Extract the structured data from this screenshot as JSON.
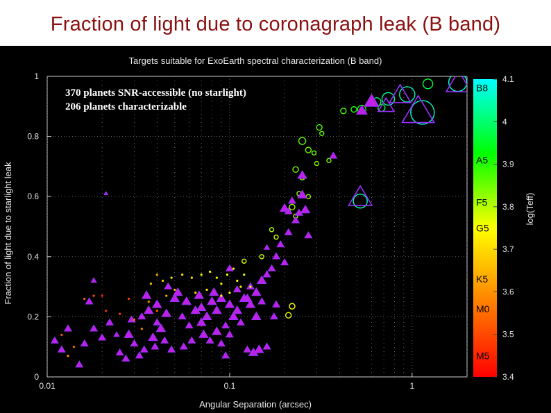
{
  "slide": {
    "title": "Fraction of light due to coronagraph leak (B band)"
  },
  "chart_data": {
    "type": "scatter",
    "title": "Targets suitable for ExoEarth spectral characterization (B band)",
    "xlabel": "Angular Separation (arcsec)",
    "ylabel": "Fraction of light due to starlight leak",
    "xscale": "log",
    "xlim": [
      0.01,
      2
    ],
    "ylim": [
      0,
      1
    ],
    "x_ticks": [
      "0.01",
      "0.1",
      "1"
    ],
    "y_ticks": [
      "0",
      "0.2",
      "0.4",
      "0.6",
      "0.8",
      "1"
    ],
    "grid": true,
    "annotations": [
      "370  planets SNR-accessible (no starlight)",
      "206 planets characterizable"
    ],
    "colorbar": {
      "label": "log(Teff)",
      "ticks": [
        "3.4",
        "3.5",
        "3.6",
        "3.7",
        "3.8",
        "3.9",
        "4",
        "4.1"
      ],
      "range": [
        3.4,
        4.1
      ],
      "spectral_types": [
        {
          "label": "B8",
          "value": 4.08
        },
        {
          "label": "A5",
          "value": 3.91
        },
        {
          "label": "F5",
          "value": 3.81
        },
        {
          "label": "G5",
          "value": 3.75
        },
        {
          "label": "K5",
          "value": 3.63
        },
        {
          "label": "M0",
          "value": 3.56
        },
        {
          "label": "M5",
          "value": 3.45
        }
      ],
      "colors": [
        "#ff0000",
        "#ff8000",
        "#ffff00",
        "#00ff00",
        "#00ffff"
      ]
    },
    "series": [
      {
        "marker": "circle",
        "points": [
          {
            "x": 1.22,
            "y": 0.975,
            "s": 7,
            "c": 3.97
          },
          {
            "x": 1.78,
            "y": 0.98,
            "s": 13,
            "c": 4.08
          },
          {
            "x": 0.94,
            "y": 0.94,
            "s": 11,
            "c": 4.05
          },
          {
            "x": 0.74,
            "y": 0.925,
            "s": 9,
            "c": 4.03
          },
          {
            "x": 0.64,
            "y": 0.915,
            "s": 6,
            "c": 3.99
          },
          {
            "x": 0.68,
            "y": 0.895,
            "s": 5,
            "c": 3.96
          },
          {
            "x": 1.14,
            "y": 0.88,
            "s": 17,
            "c": 4.07
          },
          {
            "x": 0.53,
            "y": 0.89,
            "s": 6,
            "c": 3.92
          },
          {
            "x": 0.52,
            "y": 0.585,
            "s": 10,
            "c": 4.06
          },
          {
            "x": 0.48,
            "y": 0.89,
            "s": 4,
            "c": 3.9
          },
          {
            "x": 0.42,
            "y": 0.885,
            "s": 4,
            "c": 3.88
          },
          {
            "x": 0.31,
            "y": 0.83,
            "s": 4,
            "c": 3.87
          },
          {
            "x": 0.32,
            "y": 0.81,
            "s": 3,
            "c": 3.86
          },
          {
            "x": 0.25,
            "y": 0.785,
            "s": 5,
            "c": 3.86
          },
          {
            "x": 0.27,
            "y": 0.755,
            "s": 4,
            "c": 3.85
          },
          {
            "x": 0.29,
            "y": 0.745,
            "s": 3,
            "c": 3.85
          },
          {
            "x": 0.3,
            "y": 0.71,
            "s": 3,
            "c": 3.84
          },
          {
            "x": 0.23,
            "y": 0.69,
            "s": 4,
            "c": 3.84
          },
          {
            "x": 0.25,
            "y": 0.665,
            "s": 4,
            "c": 3.83
          },
          {
            "x": 0.24,
            "y": 0.61,
            "s": 3,
            "c": 3.83
          },
          {
            "x": 0.27,
            "y": 0.6,
            "s": 3,
            "c": 3.82
          },
          {
            "x": 0.22,
            "y": 0.565,
            "s": 4,
            "c": 3.82
          },
          {
            "x": 0.2,
            "y": 0.56,
            "s": 3,
            "c": 3.81
          },
          {
            "x": 0.21,
            "y": 0.55,
            "s": 3,
            "c": 3.81
          },
          {
            "x": 0.23,
            "y": 0.535,
            "s": 3,
            "c": 3.81
          },
          {
            "x": 0.17,
            "y": 0.49,
            "s": 3,
            "c": 3.8
          },
          {
            "x": 0.15,
            "y": 0.4,
            "s": 3,
            "c": 3.78
          },
          {
            "x": 0.22,
            "y": 0.235,
            "s": 4,
            "c": 3.75
          },
          {
            "x": 0.21,
            "y": 0.205,
            "s": 4,
            "c": 3.76
          },
          {
            "x": 0.12,
            "y": 0.385,
            "s": 3,
            "c": 3.78
          },
          {
            "x": 0.18,
            "y": 0.465,
            "s": 3,
            "c": 3.79
          },
          {
            "x": 0.35,
            "y": 0.72,
            "s": 3,
            "c": 3.84
          }
        ]
      },
      {
        "marker": "triangle",
        "points": [
          {
            "x": 1.8,
            "y": 0.975,
            "s": 14
          },
          {
            "x": 0.6,
            "y": 0.915,
            "s": 8
          },
          {
            "x": 0.86,
            "y": 0.935,
            "s": 12
          },
          {
            "x": 0.72,
            "y": 0.9,
            "s": 9
          },
          {
            "x": 1.08,
            "y": 0.88,
            "s": 18
          },
          {
            "x": 0.52,
            "y": 0.595,
            "s": 13
          },
          {
            "x": 0.53,
            "y": 0.885,
            "s": 6
          },
          {
            "x": 0.37,
            "y": 0.735,
            "s": 4
          },
          {
            "x": 0.25,
            "y": 0.67,
            "s": 5
          },
          {
            "x": 0.24,
            "y": 0.545,
            "s": 4
          },
          {
            "x": 0.21,
            "y": 0.55,
            "s": 4
          },
          {
            "x": 0.23,
            "y": 0.52,
            "s": 4
          },
          {
            "x": 0.26,
            "y": 0.555,
            "s": 5
          },
          {
            "x": 0.2,
            "y": 0.56,
            "s": 5
          },
          {
            "x": 0.22,
            "y": 0.585,
            "s": 4
          },
          {
            "x": 0.25,
            "y": 0.605,
            "s": 5
          },
          {
            "x": 0.27,
            "y": 0.47,
            "s": 4
          },
          {
            "x": 0.21,
            "y": 0.48,
            "s": 4
          },
          {
            "x": 0.19,
            "y": 0.44,
            "s": 4
          },
          {
            "x": 0.2,
            "y": 0.38,
            "s": 4
          },
          {
            "x": 0.18,
            "y": 0.4,
            "s": 4
          },
          {
            "x": 0.16,
            "y": 0.34,
            "s": 4
          },
          {
            "x": 0.17,
            "y": 0.36,
            "s": 4
          },
          {
            "x": 0.15,
            "y": 0.32,
            "s": 5
          },
          {
            "x": 0.14,
            "y": 0.28,
            "s": 5
          },
          {
            "x": 0.15,
            "y": 0.25,
            "s": 4
          },
          {
            "x": 0.13,
            "y": 0.3,
            "s": 4
          },
          {
            "x": 0.12,
            "y": 0.26,
            "s": 5
          },
          {
            "x": 0.11,
            "y": 0.22,
            "s": 5
          },
          {
            "x": 0.1,
            "y": 0.24,
            "s": 5
          },
          {
            "x": 0.09,
            "y": 0.26,
            "s": 5
          },
          {
            "x": 0.085,
            "y": 0.22,
            "s": 5
          },
          {
            "x": 0.08,
            "y": 0.25,
            "s": 5
          },
          {
            "x": 0.075,
            "y": 0.2,
            "s": 5
          },
          {
            "x": 0.07,
            "y": 0.18,
            "s": 5
          },
          {
            "x": 0.065,
            "y": 0.22,
            "s": 5
          },
          {
            "x": 0.06,
            "y": 0.17,
            "s": 4
          },
          {
            "x": 0.055,
            "y": 0.2,
            "s": 4
          },
          {
            "x": 0.05,
            "y": 0.26,
            "s": 5
          },
          {
            "x": 0.045,
            "y": 0.21,
            "s": 5
          },
          {
            "x": 0.042,
            "y": 0.16,
            "s": 5
          },
          {
            "x": 0.04,
            "y": 0.24,
            "s": 5
          },
          {
            "x": 0.038,
            "y": 0.13,
            "s": 5
          },
          {
            "x": 0.036,
            "y": 0.22,
            "s": 5
          },
          {
            "x": 0.034,
            "y": 0.09,
            "s": 4
          },
          {
            "x": 0.032,
            "y": 0.07,
            "s": 4
          },
          {
            "x": 0.03,
            "y": 0.11,
            "s": 4
          },
          {
            "x": 0.028,
            "y": 0.14,
            "s": 5
          },
          {
            "x": 0.027,
            "y": 0.06,
            "s": 4
          },
          {
            "x": 0.025,
            "y": 0.08,
            "s": 4
          },
          {
            "x": 0.022,
            "y": 0.18,
            "s": 4
          },
          {
            "x": 0.02,
            "y": 0.13,
            "s": 4
          },
          {
            "x": 0.018,
            "y": 0.16,
            "s": 4
          },
          {
            "x": 0.017,
            "y": 0.25,
            "s": 4
          },
          {
            "x": 0.018,
            "y": 0.32,
            "s": 3
          },
          {
            "x": 0.016,
            "y": 0.11,
            "s": 4
          },
          {
            "x": 0.015,
            "y": 0.04,
            "s": 4
          },
          {
            "x": 0.013,
            "y": 0.16,
            "s": 4
          },
          {
            "x": 0.012,
            "y": 0.09,
            "s": 4
          },
          {
            "x": 0.011,
            "y": 0.12,
            "s": 4
          },
          {
            "x": 0.035,
            "y": 0.27,
            "s": 5
          },
          {
            "x": 0.046,
            "y": 0.3,
            "s": 4
          },
          {
            "x": 0.052,
            "y": 0.28,
            "s": 5
          },
          {
            "x": 0.058,
            "y": 0.25,
            "s": 5
          },
          {
            "x": 0.068,
            "y": 0.27,
            "s": 5
          },
          {
            "x": 0.072,
            "y": 0.14,
            "s": 5
          },
          {
            "x": 0.082,
            "y": 0.28,
            "s": 5
          },
          {
            "x": 0.095,
            "y": 0.07,
            "s": 4
          },
          {
            "x": 0.105,
            "y": 0.2,
            "s": 5
          },
          {
            "x": 0.115,
            "y": 0.18,
            "s": 4
          },
          {
            "x": 0.125,
            "y": 0.09,
            "s": 4
          },
          {
            "x": 0.135,
            "y": 0.08,
            "s": 5
          },
          {
            "x": 0.145,
            "y": 0.09,
            "s": 5
          },
          {
            "x": 0.16,
            "y": 0.1,
            "s": 4
          },
          {
            "x": 0.13,
            "y": 0.24,
            "s": 5
          },
          {
            "x": 0.14,
            "y": 0.2,
            "s": 5
          },
          {
            "x": 0.125,
            "y": 0.26,
            "s": 5
          },
          {
            "x": 0.1,
            "y": 0.36,
            "s": 4
          },
          {
            "x": 0.095,
            "y": 0.17,
            "s": 4
          },
          {
            "x": 0.085,
            "y": 0.15,
            "s": 5
          },
          {
            "x": 0.078,
            "y": 0.12,
            "s": 4
          },
          {
            "x": 0.062,
            "y": 0.12,
            "s": 4
          },
          {
            "x": 0.056,
            "y": 0.1,
            "s": 4
          },
          {
            "x": 0.048,
            "y": 0.09,
            "s": 4
          },
          {
            "x": 0.044,
            "y": 0.12,
            "s": 4
          },
          {
            "x": 0.04,
            "y": 0.18,
            "s": 4
          },
          {
            "x": 0.039,
            "y": 0.1,
            "s": 4
          },
          {
            "x": 0.033,
            "y": 0.2,
            "s": 4
          },
          {
            "x": 0.029,
            "y": 0.19,
            "s": 4
          },
          {
            "x": 0.024,
            "y": 0.14,
            "s": 3
          },
          {
            "x": 0.021,
            "y": 0.61,
            "s": 2
          },
          {
            "x": 0.175,
            "y": 0.2,
            "s": 4
          },
          {
            "x": 0.16,
            "y": 0.43,
            "s": 3
          },
          {
            "x": 0.18,
            "y": 0.24,
            "s": 4
          },
          {
            "x": 0.09,
            "y": 0.11,
            "s": 4
          },
          {
            "x": 0.11,
            "y": 0.29,
            "s": 4
          },
          {
            "x": 0.07,
            "y": 0.23,
            "s": 5
          },
          {
            "x": 0.1,
            "y": 0.14,
            "s": 4
          }
        ]
      },
      {
        "marker": "dot",
        "points": [
          {
            "x": 0.04,
            "y": 0.34,
            "c": 3.63
          },
          {
            "x": 0.043,
            "y": 0.32,
            "c": 3.69
          },
          {
            "x": 0.048,
            "y": 0.33,
            "c": 3.71
          },
          {
            "x": 0.055,
            "y": 0.34,
            "c": 3.73
          },
          {
            "x": 0.062,
            "y": 0.33,
            "c": 3.72
          },
          {
            "x": 0.07,
            "y": 0.34,
            "c": 3.74
          },
          {
            "x": 0.078,
            "y": 0.35,
            "c": 3.75
          },
          {
            "x": 0.085,
            "y": 0.33,
            "c": 3.74
          },
          {
            "x": 0.09,
            "y": 0.31,
            "c": 3.73
          },
          {
            "x": 0.097,
            "y": 0.34,
            "c": 3.75
          },
          {
            "x": 0.105,
            "y": 0.36,
            "c": 3.76
          },
          {
            "x": 0.11,
            "y": 0.32,
            "c": 3.75
          },
          {
            "x": 0.115,
            "y": 0.3,
            "c": 3.74
          },
          {
            "x": 0.12,
            "y": 0.34,
            "c": 3.77
          },
          {
            "x": 0.04,
            "y": 0.22,
            "c": 3.52
          },
          {
            "x": 0.028,
            "y": 0.26,
            "c": 3.5
          },
          {
            "x": 0.025,
            "y": 0.21,
            "c": 3.48
          },
          {
            "x": 0.02,
            "y": 0.27,
            "c": 3.46
          },
          {
            "x": 0.018,
            "y": 0.27,
            "c": 3.5
          },
          {
            "x": 0.016,
            "y": 0.26,
            "c": 3.55
          },
          {
            "x": 0.03,
            "y": 0.19,
            "c": 3.55
          },
          {
            "x": 0.033,
            "y": 0.16,
            "c": 3.58
          },
          {
            "x": 0.036,
            "y": 0.25,
            "c": 3.6
          },
          {
            "x": 0.037,
            "y": 0.31,
            "c": 3.66
          },
          {
            "x": 0.045,
            "y": 0.27,
            "c": 3.64
          },
          {
            "x": 0.05,
            "y": 0.29,
            "c": 3.67
          },
          {
            "x": 0.065,
            "y": 0.28,
            "c": 3.72
          },
          {
            "x": 0.075,
            "y": 0.29,
            "c": 3.73
          },
          {
            "x": 0.09,
            "y": 0.27,
            "c": 3.74
          },
          {
            "x": 0.1,
            "y": 0.28,
            "c": 3.75
          },
          {
            "x": 0.13,
            "y": 0.3,
            "c": 3.77
          },
          {
            "x": 0.012,
            "y": 0.14,
            "c": 3.52
          },
          {
            "x": 0.014,
            "y": 0.1,
            "c": 3.55
          },
          {
            "x": 0.013,
            "y": 0.07,
            "c": 3.6
          },
          {
            "x": 0.021,
            "y": 0.22,
            "c": 3.47
          }
        ]
      }
    ]
  }
}
